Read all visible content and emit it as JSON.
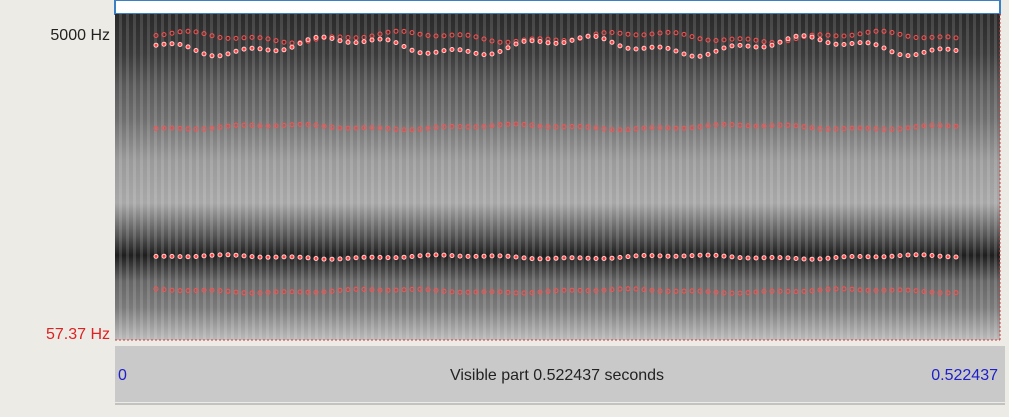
{
  "frequency_axis": {
    "top_label": "5000 Hz",
    "bottom_label": "57.37 Hz"
  },
  "time_axis": {
    "start": "0",
    "visible_part": "Visible part 0.522437 seconds",
    "end": "0.522437"
  }
}
